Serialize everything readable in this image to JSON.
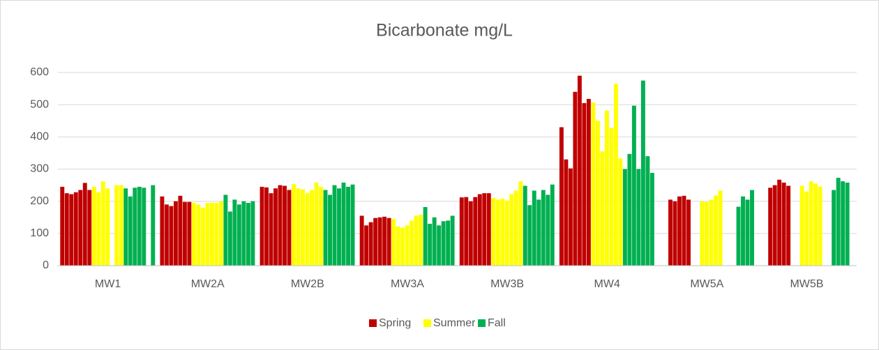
{
  "chart_data": {
    "type": "bar",
    "title": "Bicarbonate mg/L",
    "categories": [
      "MW1",
      "MW2A",
      "MW2B",
      "MW3A",
      "MW3B",
      "MW4",
      "MW5A",
      "MW5B"
    ],
    "ylim": [
      0,
      600
    ],
    "yticks": [
      0,
      100,
      200,
      300,
      400,
      500,
      600
    ],
    "grid": true,
    "legend": "bottom",
    "series": [
      {
        "name": "Spring",
        "color": "#c00000",
        "values": [
          [
            245,
            225,
            222,
            228,
            235,
            257,
            235
          ],
          [
            215,
            190,
            185,
            200,
            217,
            198,
            198
          ],
          [
            245,
            243,
            225,
            240,
            250,
            248,
            235
          ],
          [
            155,
            125,
            135,
            148,
            150,
            152,
            148
          ],
          [
            212,
            213,
            200,
            213,
            222,
            225,
            225
          ],
          [
            430,
            330,
            302,
            540,
            590,
            505,
            518
          ],
          [
            null,
            null,
            205,
            200,
            215,
            217,
            205
          ],
          [
            null,
            null,
            242,
            250,
            267,
            258,
            248
          ]
        ]
      },
      {
        "name": "Summer",
        "color": "#ffff00",
        "values": [
          [
            245,
            228,
            262,
            240,
            null,
            250,
            250
          ],
          [
            195,
            190,
            180,
            195,
            195,
            195,
            200
          ],
          [
            253,
            240,
            237,
            225,
            235,
            258,
            245
          ],
          [
            145,
            122,
            118,
            125,
            140,
            155,
            158
          ],
          [
            210,
            205,
            208,
            202,
            222,
            233,
            262
          ],
          [
            507,
            450,
            355,
            482,
            428,
            565,
            333
          ],
          [
            null,
            null,
            200,
            198,
            205,
            218,
            233
          ],
          [
            null,
            null,
            248,
            230,
            262,
            255,
            245
          ]
        ]
      },
      {
        "name": "Fall",
        "color": "#00b050",
        "values": [
          [
            240,
            215,
            242,
            245,
            242,
            null,
            250
          ],
          [
            220,
            168,
            205,
            190,
            200,
            195,
            200
          ],
          [
            235,
            220,
            250,
            240,
            258,
            245,
            252
          ],
          [
            182,
            130,
            150,
            125,
            138,
            140,
            155
          ],
          [
            248,
            188,
            233,
            205,
            235,
            220,
            252
          ],
          [
            300,
            347,
            497,
            300,
            575,
            340,
            288
          ],
          [
            null,
            null,
            null,
            183,
            215,
            205,
            235
          ],
          [
            null,
            null,
            235,
            273,
            262,
            258,
            null
          ]
        ]
      }
    ]
  }
}
